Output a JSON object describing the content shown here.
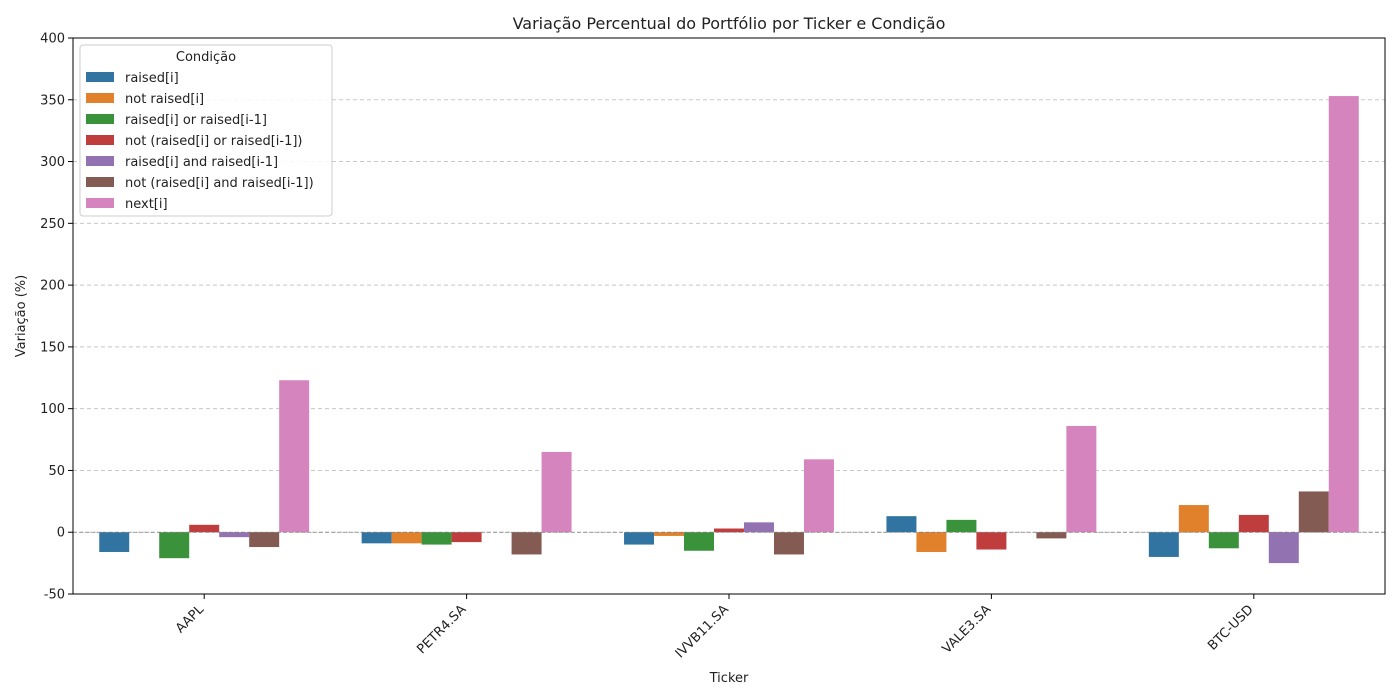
{
  "chart_data": {
    "type": "bar",
    "title": "Variação Percentual do Portfólio por Ticker e Condição",
    "xlabel": "Ticker",
    "ylabel": "Variação (%)",
    "ylim": [
      -50,
      400
    ],
    "yticks": [
      -50,
      0,
      50,
      100,
      150,
      200,
      250,
      300,
      350,
      400
    ],
    "grid": "horizontal dashed",
    "legend_title": "Condição",
    "legend_position": "top-left",
    "categories": [
      "AAPL",
      "PETR4.SA",
      "IVVB11.SA",
      "VALE3.SA",
      "BTC-USD"
    ],
    "series": [
      {
        "name": "raised[i]",
        "color": "#3274a1",
        "values": [
          -16,
          -9,
          -10,
          13,
          -20
        ]
      },
      {
        "name": "not raised[i]",
        "color": "#e1812c",
        "values": [
          0,
          -9,
          -3,
          -16,
          22
        ]
      },
      {
        "name": "raised[i] or raised[i-1]",
        "color": "#3a923a",
        "values": [
          -21,
          -10,
          -15,
          10,
          -13
        ]
      },
      {
        "name": "not (raised[i] or raised[i-1])",
        "color": "#c03d3e",
        "values": [
          6,
          -8,
          3,
          -14,
          14
        ]
      },
      {
        "name": "raised[i] and raised[i-1]",
        "color": "#9372b2",
        "values": [
          -4,
          0,
          8,
          0,
          -25
        ]
      },
      {
        "name": "not (raised[i] and raised[i-1])",
        "color": "#845b53",
        "values": [
          -12,
          -18,
          -18,
          -5,
          33
        ]
      },
      {
        "name": "next[i]",
        "color": "#d684bd",
        "values": [
          123,
          65,
          59,
          86,
          353
        ]
      }
    ]
  }
}
